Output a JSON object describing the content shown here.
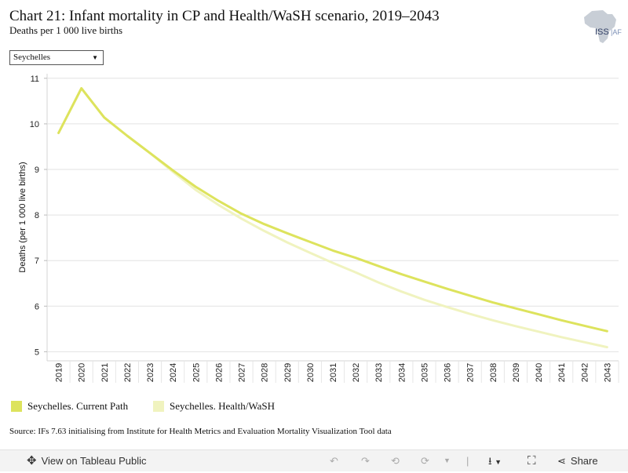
{
  "header": {
    "title": "Chart 21: Infant mortality in CP and Health/WaSH scenario, 2019–2043",
    "subtitle": "Deaths per 1 000 live births",
    "logo_text": "ISS|AFR"
  },
  "filter": {
    "selected": "Seychelles"
  },
  "chart_data": {
    "type": "line",
    "ylabel": "Deaths (per 1 000 live births)",
    "x": [
      2019,
      2020,
      2021,
      2022,
      2023,
      2024,
      2025,
      2026,
      2027,
      2028,
      2029,
      2030,
      2031,
      2032,
      2033,
      2034,
      2035,
      2036,
      2037,
      2038,
      2039,
      2040,
      2041,
      2042,
      2043
    ],
    "yticks": [
      5,
      6,
      7,
      8,
      9,
      10,
      11
    ],
    "ylim": [
      4.8,
      11.1
    ],
    "grid": true,
    "legend_position": "bottom",
    "series": [
      {
        "name": "Seychelles. Current Path",
        "color": "#dde35d",
        "values": [
          9.8,
          10.78,
          10.14,
          9.74,
          9.36,
          8.98,
          8.62,
          8.31,
          8.03,
          7.8,
          7.6,
          7.41,
          7.22,
          7.06,
          6.88,
          6.7,
          6.54,
          6.38,
          6.23,
          6.08,
          5.95,
          5.82,
          5.69,
          5.57,
          5.45
        ]
      },
      {
        "name": "Seychelles. Health/WaSH",
        "color": "#f0f3bf",
        "values": [
          9.8,
          10.78,
          10.14,
          9.74,
          9.36,
          8.95,
          8.55,
          8.22,
          7.92,
          7.65,
          7.4,
          7.17,
          6.95,
          6.74,
          6.52,
          6.32,
          6.14,
          5.98,
          5.83,
          5.69,
          5.56,
          5.44,
          5.32,
          5.21,
          5.1
        ]
      }
    ]
  },
  "source": "Source: IFs 7.63 initialising from Institute for Health Metrics and Evaluation Mortality Visualization Tool data",
  "footer": {
    "view_label": "View on Tableau Public",
    "share_label": "Share"
  }
}
